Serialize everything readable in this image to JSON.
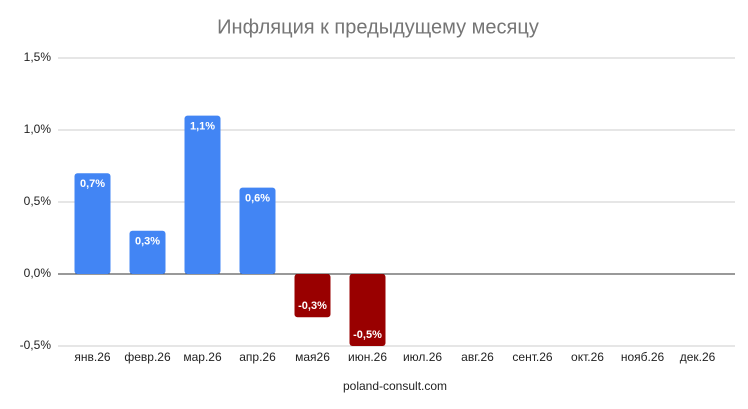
{
  "chart_data": {
    "type": "bar",
    "title": "Инфляция к предыдущему месяцу",
    "categories": [
      "янв.26",
      "февр.26",
      "мар.26",
      "апр.26",
      "мая26",
      "июн.26",
      "июл.26",
      "авг.26",
      "сент.26",
      "окт.26",
      "нояб.26",
      "дек.26"
    ],
    "values": [
      0.7,
      0.3,
      1.1,
      0.6,
      -0.3,
      -0.5,
      null,
      null,
      null,
      null,
      null,
      null
    ],
    "value_labels": [
      "0,7%",
      "0,3%",
      "1,1%",
      "0,6%",
      "-0,3%",
      "-0,5%",
      null,
      null,
      null,
      null,
      null,
      null
    ],
    "color": "#4285f4",
    "negative_color": "#990000",
    "ylim": [
      -0.5,
      1.5
    ],
    "yticks": [
      {
        "value": -0.5,
        "label": "-0,5%"
      },
      {
        "value": 0,
        "label": "0,0%"
      },
      {
        "value": 0.5,
        "label": "0,5%"
      },
      {
        "value": 1,
        "label": "1,0%"
      },
      {
        "value": 1.5,
        "label": "1,5%"
      }
    ],
    "xlabel": "poland-consult.com",
    "grid": true
  }
}
